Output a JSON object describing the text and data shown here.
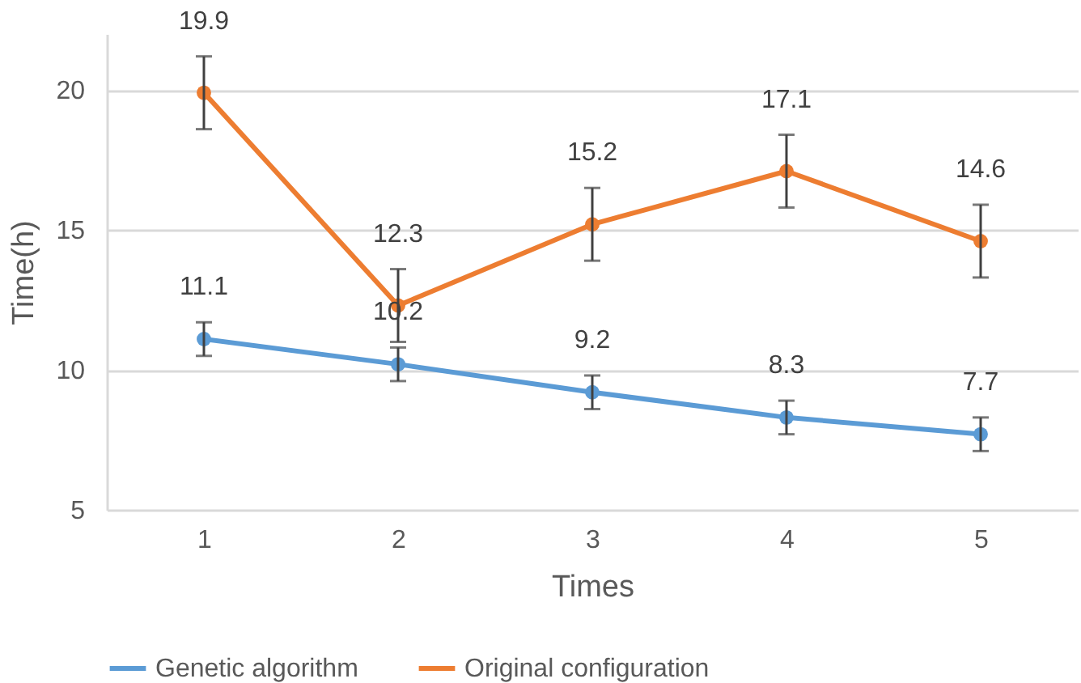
{
  "chart_data": {
    "type": "line",
    "xlabel": "Times",
    "ylabel": "Time(h)",
    "categories": [
      "1",
      "2",
      "3",
      "4",
      "5"
    ],
    "series": [
      {
        "name": "Genetic algorithm",
        "color": "#5b9bd5",
        "values": [
          11.1,
          10.2,
          9.2,
          8.3,
          7.7
        ],
        "errors": [
          0.6,
          0.6,
          0.6,
          0.6,
          0.6
        ]
      },
      {
        "name": "Original configuration",
        "color": "#ed7d31",
        "values": [
          19.9,
          12.3,
          15.2,
          17.1,
          14.6
        ],
        "errors": [
          1.3,
          1.3,
          1.3,
          1.3,
          1.3
        ]
      }
    ],
    "ylim": [
      5,
      22
    ],
    "yticks": [
      5,
      10,
      15,
      20
    ],
    "grid": "y",
    "legend": "bottom",
    "marker": "circle",
    "line_style": "solid",
    "data_labels": true
  }
}
